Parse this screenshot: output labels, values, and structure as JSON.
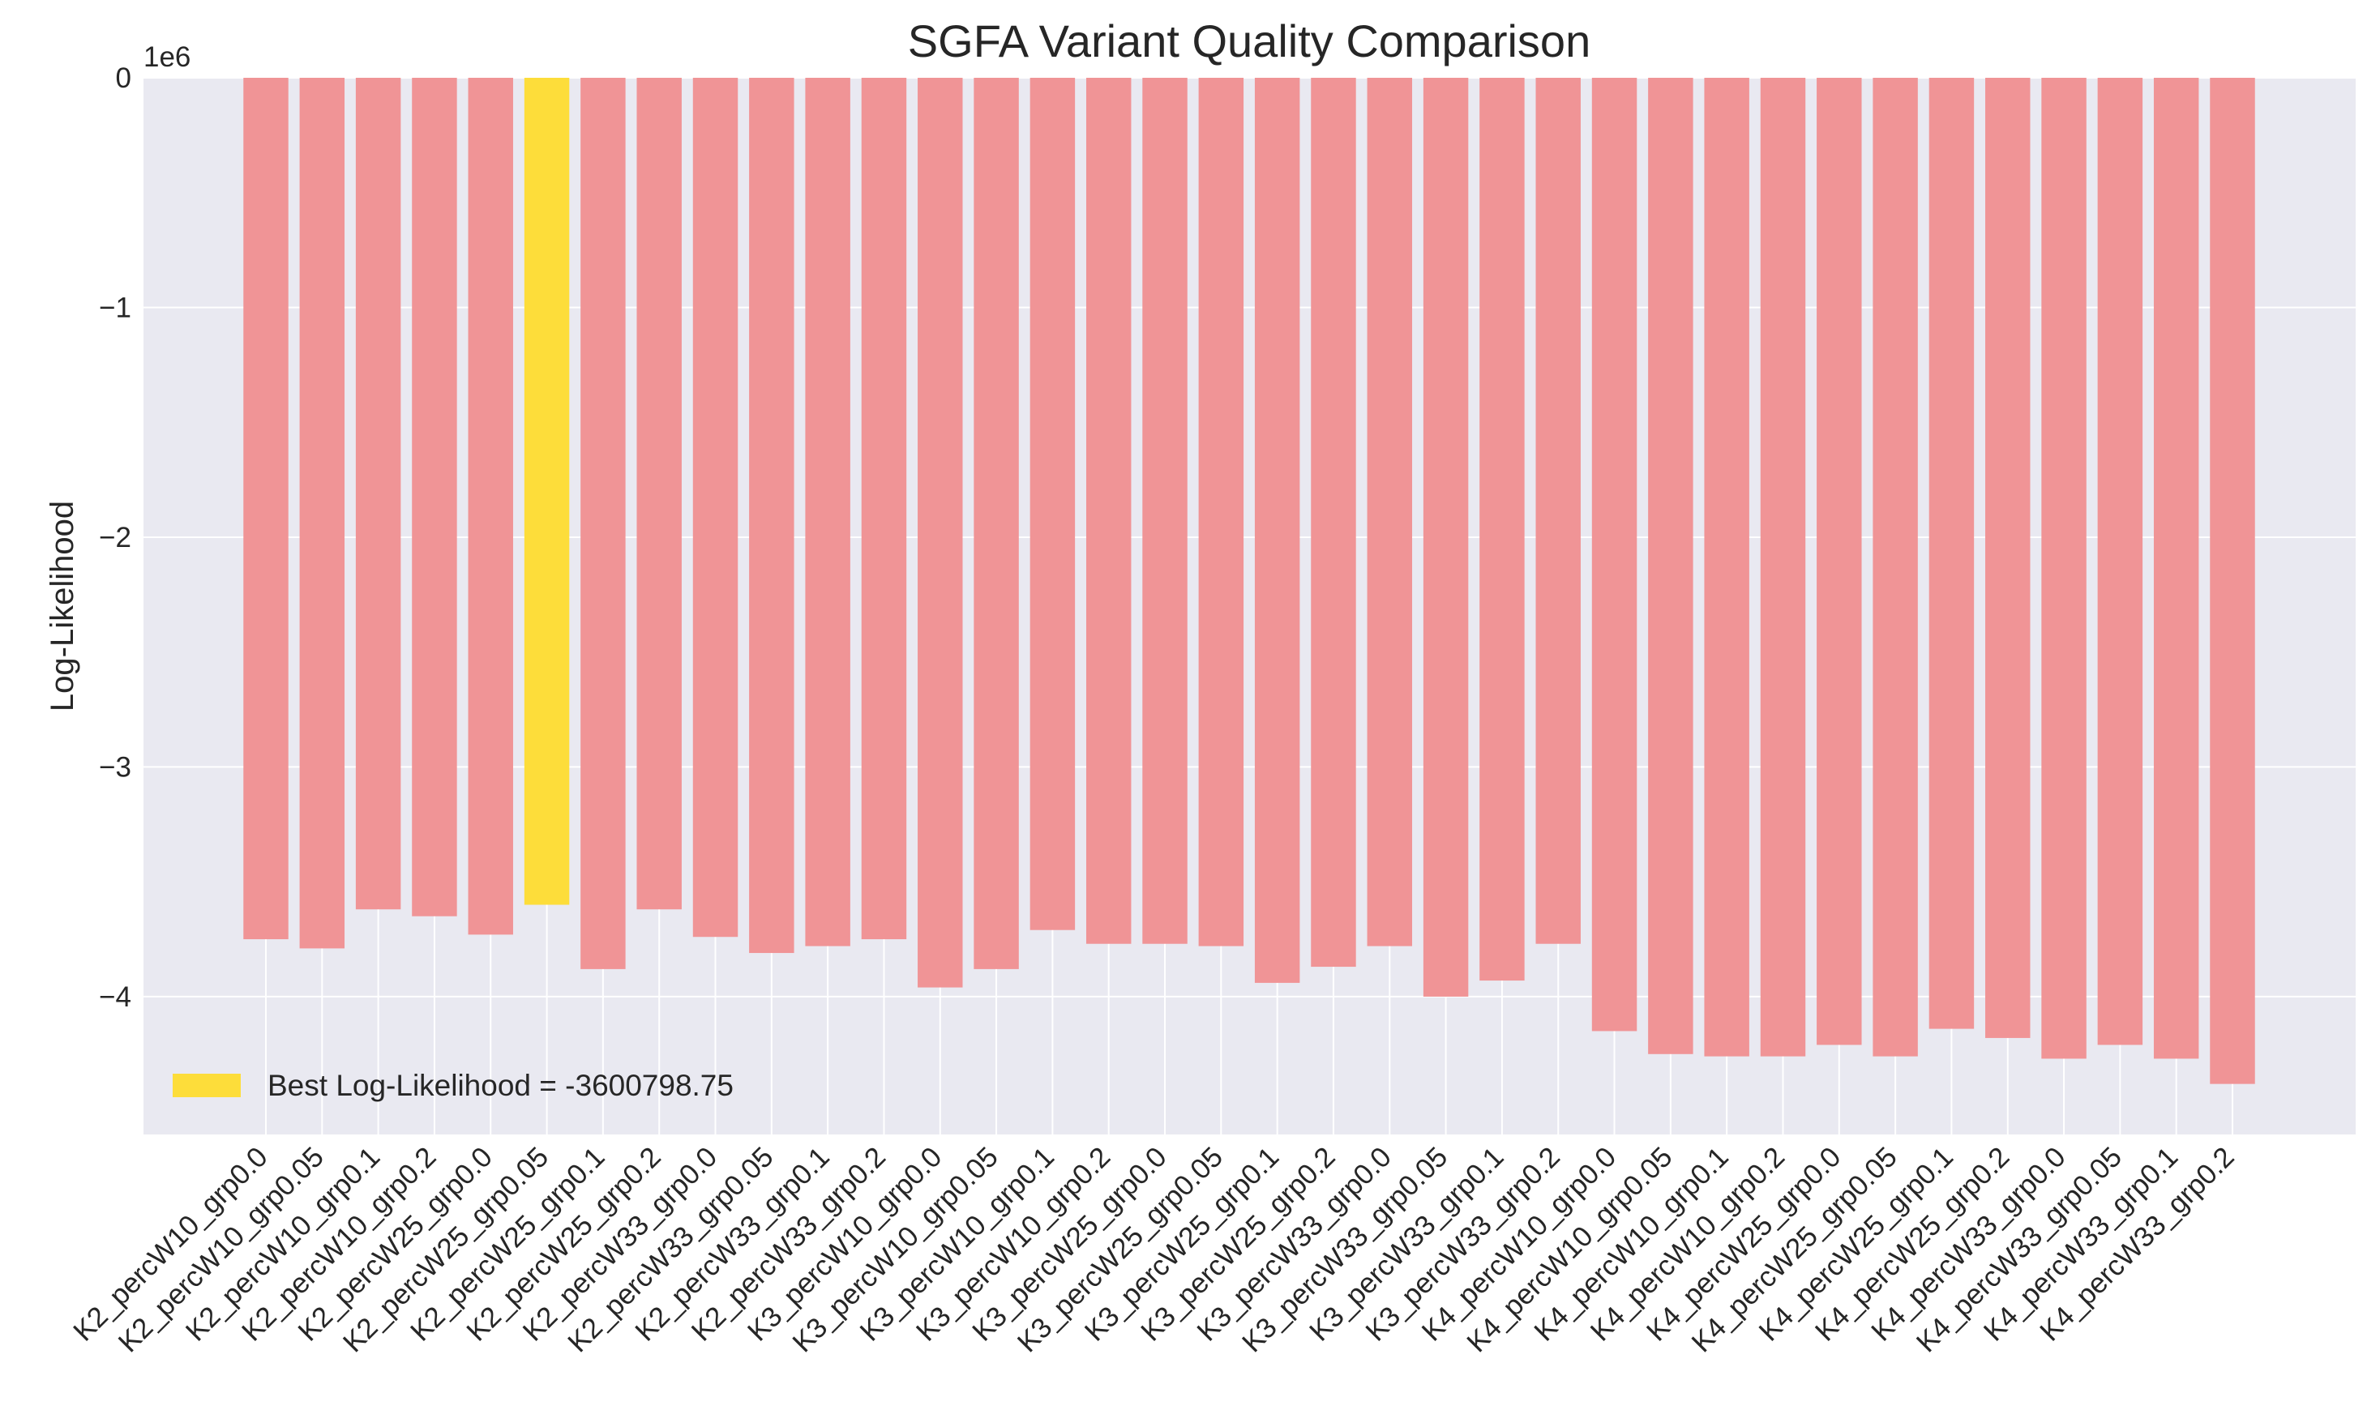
{
  "chart_data": {
    "type": "bar",
    "title": "SGFA Variant Quality Comparison",
    "xlabel": "",
    "ylabel": "Log-Likelihood",
    "offset_label": "1e6",
    "ylim": [
      -4.6,
      0
    ],
    "yticks": [
      0,
      -1,
      -2,
      -3,
      -4
    ],
    "ytick_labels": [
      "0",
      "−1",
      "−2",
      "−3",
      "−4"
    ],
    "grid": true,
    "legend": {
      "placement": "lower-left",
      "label": "Best Log-Likelihood = -3600798.75"
    },
    "colors": {
      "default": "#f09496",
      "best": "#fddd3a",
      "background": "#e9e9f1",
      "grid": "#ffffff"
    },
    "categories": [
      "K2_percW10_grp0.0",
      "K2_percW10_grp0.05",
      "K2_percW10_grp0.1",
      "K2_percW10_grp0.2",
      "K2_percW25_grp0.0",
      "K2_percW25_grp0.05",
      "K2_percW25_grp0.1",
      "K2_percW25_grp0.2",
      "K2_percW33_grp0.0",
      "K2_percW33_grp0.05",
      "K2_percW33_grp0.1",
      "K2_percW33_grp0.2",
      "K3_percW10_grp0.0",
      "K3_percW10_grp0.05",
      "K3_percW10_grp0.1",
      "K3_percW10_grp0.2",
      "K3_percW25_grp0.0",
      "K3_percW25_grp0.05",
      "K3_percW25_grp0.1",
      "K3_percW25_grp0.2",
      "K3_percW33_grp0.0",
      "K3_percW33_grp0.05",
      "K3_percW33_grp0.1",
      "K3_percW33_grp0.2",
      "K4_percW10_grp0.0",
      "K4_percW10_grp0.05",
      "K4_percW10_grp0.1",
      "K4_percW10_grp0.2",
      "K4_percW25_grp0.0",
      "K4_percW25_grp0.05",
      "K4_percW25_grp0.1",
      "K4_percW25_grp0.2",
      "K4_percW33_grp0.0",
      "K4_percW33_grp0.05",
      "K4_percW33_grp0.1",
      "K4_percW33_grp0.2"
    ],
    "values": [
      -3.75,
      -3.79,
      -3.62,
      -3.65,
      -3.73,
      -3.6,
      -3.88,
      -3.62,
      -3.74,
      -3.81,
      -3.78,
      -3.75,
      -3.96,
      -3.88,
      -3.71,
      -3.77,
      -3.77,
      -3.78,
      -3.94,
      -3.87,
      -3.78,
      -4.0,
      -3.93,
      -3.77,
      -4.15,
      -4.25,
      -4.26,
      -4.26,
      -4.21,
      -4.26,
      -4.14,
      -4.18,
      -4.27,
      -4.21,
      -4.27,
      -4.38
    ],
    "best_index": 5
  }
}
